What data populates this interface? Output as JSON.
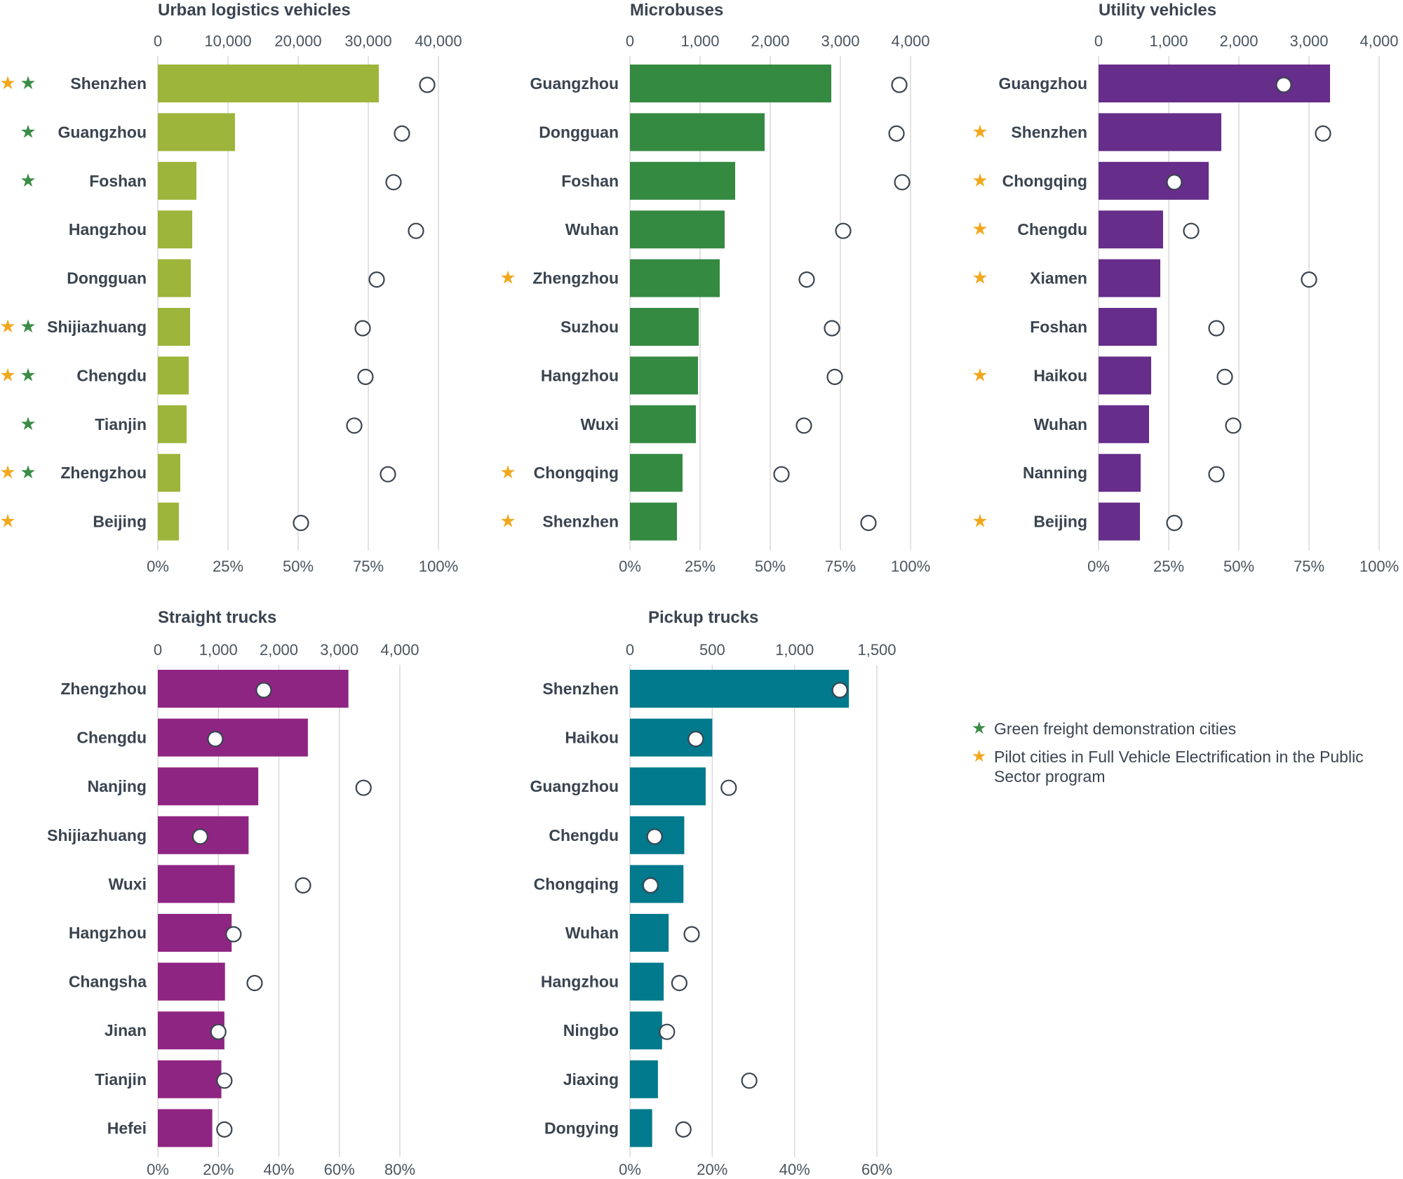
{
  "colors": {
    "green_star": "#3a8c46",
    "orange_star": "#f2a81d",
    "grid": "#d9d9d9",
    "marker_stroke": "#3a4450"
  },
  "legend": {
    "green_star_label": "Green freight demonstration cities",
    "orange_star_label": "Pilot cities in Full Vehicle Electrification in the Public Sector program",
    "star_glyph": "★"
  },
  "chart_data": [
    {
      "type": "bar",
      "title": "Urban logistics vehicles",
      "color": "#9db53a",
      "top_axis": {
        "max": 40000,
        "ticks": [
          0,
          10000,
          20000,
          30000,
          40000
        ],
        "tick_labels": [
          "0",
          "10,000",
          "20,000",
          "30,000",
          "40,000"
        ]
      },
      "bottom_axis": {
        "max": 100,
        "ticks": [
          0,
          25,
          50,
          75,
          100
        ],
        "tick_labels": [
          "0%",
          "25%",
          "50%",
          "75%",
          "100%"
        ]
      },
      "categories": [
        "Shenzhen",
        "Guangzhou",
        "Foshan",
        "Hangzhou",
        "Dongguan",
        "Shijiazhuang",
        "Chengdu",
        "Tianjin",
        "Zhengzhou",
        "Beijing"
      ],
      "values": [
        31500,
        11000,
        5500,
        4900,
        4700,
        4600,
        4400,
        4100,
        3200,
        3000
      ],
      "share_pct": [
        96,
        87,
        84,
        92,
        78,
        73,
        74,
        70,
        82,
        51
      ],
      "orange_star": [
        true,
        false,
        false,
        false,
        false,
        true,
        true,
        false,
        true,
        true
      ],
      "green_star": [
        true,
        true,
        true,
        false,
        false,
        true,
        true,
        true,
        true,
        false
      ]
    },
    {
      "type": "bar",
      "title": "Microbuses",
      "color": "#358a42",
      "top_axis": {
        "max": 4000,
        "ticks": [
          0,
          1000,
          2000,
          3000,
          4000
        ],
        "tick_labels": [
          "0",
          "1,000",
          "2,000",
          "3,000",
          "4,000"
        ]
      },
      "bottom_axis": {
        "max": 100,
        "ticks": [
          0,
          25,
          50,
          75,
          100
        ],
        "tick_labels": [
          "0%",
          "25%",
          "50%",
          "75%",
          "100%"
        ]
      },
      "categories": [
        "Guangzhou",
        "Dongguan",
        "Foshan",
        "Wuhan",
        "Zhengzhou",
        "Suzhou",
        "Hangzhou",
        "Wuxi",
        "Chongqing",
        "Shenzhen"
      ],
      "values": [
        2870,
        1920,
        1500,
        1350,
        1280,
        980,
        970,
        940,
        750,
        670
      ],
      "share_pct": [
        96,
        95,
        97,
        76,
        63,
        72,
        73,
        62,
        54,
        85
      ],
      "orange_star": [
        false,
        false,
        false,
        false,
        true,
        false,
        false,
        false,
        true,
        true
      ],
      "green_star": [
        false,
        false,
        false,
        false,
        false,
        false,
        false,
        false,
        false,
        false
      ]
    },
    {
      "type": "bar",
      "title": "Utility vehicles",
      "color": "#662d8a",
      "top_axis": {
        "max": 4000,
        "ticks": [
          0,
          1000,
          2000,
          3000,
          4000
        ],
        "tick_labels": [
          "0",
          "1,000",
          "2,000",
          "3,000",
          "4,000"
        ]
      },
      "bottom_axis": {
        "max": 100,
        "ticks": [
          0,
          25,
          50,
          75,
          100
        ],
        "tick_labels": [
          "0%",
          "25%",
          "50%",
          "75%",
          "100%"
        ]
      },
      "categories": [
        "Guangzhou",
        "Shenzhen",
        "Chongqing",
        "Chengdu",
        "Xiamen",
        "Foshan",
        "Haikou",
        "Wuhan",
        "Nanning",
        "Beijing"
      ],
      "values": [
        3300,
        1750,
        1570,
        920,
        880,
        830,
        750,
        720,
        600,
        590
      ],
      "share_pct": [
        66,
        80,
        27,
        33,
        75,
        42,
        45,
        48,
        42,
        27
      ],
      "orange_star": [
        false,
        true,
        true,
        true,
        true,
        false,
        true,
        false,
        false,
        true
      ],
      "green_star": [
        false,
        false,
        false,
        false,
        false,
        false,
        false,
        false,
        false,
        false
      ]
    },
    {
      "type": "bar",
      "title": "Straight trucks",
      "color": "#8f2582",
      "top_axis": {
        "max": 4000,
        "ticks": [
          0,
          1000,
          2000,
          3000,
          4000
        ],
        "tick_labels": [
          "0",
          "1,000",
          "2,000",
          "3,000",
          "4,000"
        ]
      },
      "bottom_axis": {
        "max": 80,
        "ticks": [
          0,
          20,
          40,
          60,
          80
        ],
        "tick_labels": [
          "0%",
          "20%",
          "40%",
          "60%",
          "80%"
        ]
      },
      "categories": [
        "Zhengzhou",
        "Chengdu",
        "Nanjing",
        "Shijiazhuang",
        "Wuxi",
        "Hangzhou",
        "Changsha",
        "Jinan",
        "Tianjin",
        "Hefei"
      ],
      "values": [
        3150,
        2480,
        1660,
        1500,
        1270,
        1220,
        1110,
        1100,
        1050,
        900
      ],
      "share_pct": [
        35,
        19,
        68,
        14,
        48,
        25,
        32,
        20,
        22,
        22
      ],
      "orange_star": [
        false,
        false,
        false,
        false,
        false,
        false,
        false,
        false,
        false,
        false
      ],
      "green_star": [
        false,
        false,
        false,
        false,
        false,
        false,
        false,
        false,
        false,
        false
      ]
    },
    {
      "type": "bar",
      "title": "Pickup trucks",
      "color": "#007a8c",
      "top_axis": {
        "max": 1500,
        "ticks": [
          0,
          500,
          1000,
          1500
        ],
        "tick_labels": [
          "0",
          "500",
          "1,000",
          "1,500"
        ]
      },
      "bottom_axis": {
        "max": 60,
        "ticks": [
          0,
          20,
          40,
          60
        ],
        "tick_labels": [
          "0%",
          "20%",
          "40%",
          "60%"
        ]
      },
      "categories": [
        "Shenzhen",
        "Haikou",
        "Guangzhou",
        "Chengdu",
        "Chongqing",
        "Wuhan",
        "Hangzhou",
        "Ningbo",
        "Jiaxing",
        "Dongying"
      ],
      "values": [
        1330,
        500,
        460,
        330,
        325,
        235,
        205,
        195,
        170,
        135
      ],
      "share_pct": [
        51,
        16,
        24,
        6,
        5,
        15,
        12,
        9,
        29,
        13
      ],
      "orange_star": [
        false,
        false,
        false,
        false,
        false,
        false,
        false,
        false,
        false,
        false
      ],
      "green_star": [
        false,
        false,
        false,
        false,
        false,
        false,
        false,
        false,
        false,
        false
      ]
    }
  ]
}
